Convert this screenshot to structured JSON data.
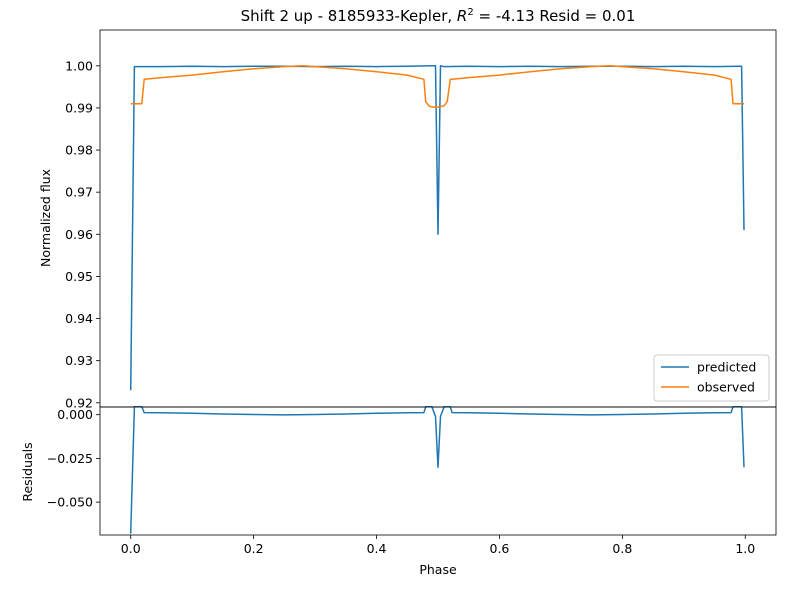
{
  "chart_data": [
    {
      "type": "line",
      "title": "Shift 2 up - 8185933-Kepler, R² = -4.13 Resid = 0.01",
      "title_parts": {
        "prefix": "Shift 2 up - 8185933-Kepler, ",
        "r_symbol": "R",
        "r_exp": "2",
        "suffix": " = -4.13 Resid = 0.01"
      },
      "xlabel": "",
      "ylabel": "Normalized flux",
      "xlim": [
        -0.05,
        1.05
      ],
      "ylim": [
        0.919,
        1.0085
      ],
      "yticks": [
        0.92,
        0.93,
        0.94,
        0.95,
        0.96,
        0.97,
        0.98,
        0.99,
        1.0
      ],
      "ytick_labels": [
        "0.92",
        "0.93",
        "0.94",
        "0.95",
        "0.96",
        "0.97",
        "0.98",
        "0.99",
        "1.00"
      ],
      "legend_position": "lower-right",
      "series": [
        {
          "name": "predicted",
          "color": "#1f77b4",
          "x": [
            0.0,
            0.006,
            0.02,
            0.05,
            0.1,
            0.15,
            0.2,
            0.25,
            0.3,
            0.35,
            0.4,
            0.45,
            0.49,
            0.496,
            0.5,
            0.504,
            0.51,
            0.55,
            0.6,
            0.65,
            0.7,
            0.75,
            0.8,
            0.85,
            0.9,
            0.95,
            0.99,
            0.994,
            0.998
          ],
          "y": [
            0.923,
            0.9998,
            0.9998,
            0.9998,
            0.9999,
            0.9998,
            0.9999,
            0.9999,
            0.9998,
            0.9999,
            0.9998,
            0.9999,
            1.0,
            1.0,
            0.96,
            1.0,
            0.9998,
            0.9999,
            0.9998,
            0.9999,
            0.9998,
            0.9999,
            0.9999,
            0.9998,
            0.9999,
            0.9998,
            0.9999,
            0.9999,
            0.961
          ]
        },
        {
          "name": "observed",
          "color": "#ff7f0e",
          "x": [
            0.0,
            0.018,
            0.022,
            0.05,
            0.1,
            0.15,
            0.2,
            0.25,
            0.28,
            0.3,
            0.35,
            0.4,
            0.45,
            0.477,
            0.48,
            0.485,
            0.49,
            0.5,
            0.51,
            0.515,
            0.52,
            0.523,
            0.55,
            0.6,
            0.65,
            0.7,
            0.75,
            0.78,
            0.8,
            0.85,
            0.9,
            0.95,
            0.977,
            0.98,
            0.998
          ],
          "y": [
            0.991,
            0.991,
            0.9968,
            0.9972,
            0.9978,
            0.9986,
            0.9993,
            0.9998,
            1.0,
            0.9998,
            0.9993,
            0.9986,
            0.9978,
            0.9968,
            0.9915,
            0.9905,
            0.9902,
            0.9902,
            0.9905,
            0.9915,
            0.9968,
            0.9968,
            0.9972,
            0.9978,
            0.9986,
            0.9993,
            0.9998,
            1.0,
            0.9998,
            0.9993,
            0.9986,
            0.9978,
            0.9968,
            0.991,
            0.991
          ]
        }
      ]
    },
    {
      "type": "line",
      "title": "",
      "xlabel": "Phase",
      "ylabel": "Residuals",
      "xlim": [
        -0.05,
        1.05
      ],
      "ylim": [
        -0.0688,
        0.0044
      ],
      "xticks": [
        0.0,
        0.2,
        0.4,
        0.6,
        0.8,
        1.0
      ],
      "xtick_labels": [
        "0.0",
        "0.2",
        "0.4",
        "0.6",
        "0.8",
        "1.0"
      ],
      "yticks": [
        0.0,
        -0.025,
        -0.05
      ],
      "ytick_labels": [
        "0.000",
        "−0.025",
        "−0.050"
      ],
      "series": [
        {
          "name": "",
          "color": "#1f77b4",
          "x": [
            0.0,
            0.006,
            0.018,
            0.022,
            0.05,
            0.1,
            0.15,
            0.2,
            0.25,
            0.3,
            0.35,
            0.4,
            0.45,
            0.477,
            0.48,
            0.49,
            0.496,
            0.5,
            0.504,
            0.51,
            0.52,
            0.523,
            0.55,
            0.6,
            0.65,
            0.7,
            0.75,
            0.8,
            0.85,
            0.9,
            0.95,
            0.977,
            0.98,
            0.994,
            0.998
          ],
          "y": [
            -0.068,
            0.0045,
            0.0045,
            0.0012,
            0.0011,
            0.0008,
            0.0004,
            0.0001,
            -0.0001,
            0.0001,
            0.0004,
            0.0008,
            0.0011,
            0.0012,
            0.0045,
            0.0045,
            -0.001,
            -0.03,
            -0.001,
            0.0045,
            0.0045,
            0.0012,
            0.0011,
            0.0008,
            0.0004,
            0.0001,
            -0.0001,
            0.0001,
            0.0004,
            0.0008,
            0.0011,
            0.0012,
            0.0045,
            0.0045,
            -0.03
          ]
        }
      ]
    }
  ]
}
